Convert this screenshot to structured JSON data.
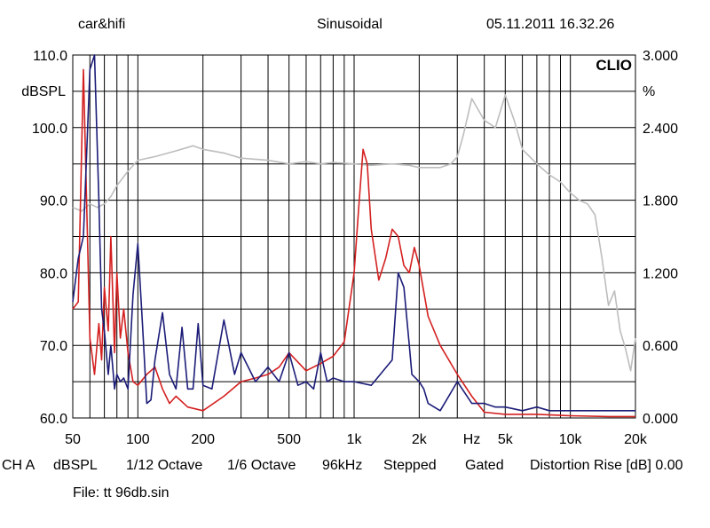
{
  "header": {
    "left": "car&hifi",
    "center": "Sinusoidal",
    "right": "05.11.2011 16.32.26"
  },
  "logo": "CLIO",
  "footer": {
    "channel": "CH A",
    "unit": "dBSPL",
    "smoothing": "1/12 Octave",
    "resolution": "1/6 Octave",
    "rate": "96kHz",
    "mode": "Stepped",
    "gating": "Gated",
    "distortion": "Distortion Rise [dB] 0.00",
    "file": "File: tt 96db.sin"
  },
  "colors": {
    "background": "#ffffff",
    "grid": "#000000",
    "series_red": "#d42020",
    "series_blue": "#1c1c78",
    "series_grey": "#bdbdbd"
  },
  "chart_data": {
    "type": "line",
    "xscale": "log",
    "xlim": [
      50,
      20000
    ],
    "x_ticks": [
      {
        "value": 50,
        "label": "50"
      },
      {
        "value": 100,
        "label": "100"
      },
      {
        "value": 200,
        "label": "200"
      },
      {
        "value": 500,
        "label": "500"
      },
      {
        "value": 1000,
        "label": "1k"
      },
      {
        "value": 2000,
        "label": "2k"
      },
      {
        "value": 3500,
        "label": "Hz"
      },
      {
        "value": 5000,
        "label": "5k"
      },
      {
        "value": 10000,
        "label": "10k"
      },
      {
        "value": 20000,
        "label": "20k"
      }
    ],
    "xlabel": "Hz",
    "ylabel_left": "dBSPL",
    "ylim_left": [
      60,
      110
    ],
    "y_ticks_left": [
      "60.0",
      "70.0",
      "80.0",
      "90.0",
      "100.0",
      "110.0"
    ],
    "ylabel_right": "%",
    "ylim_right": [
      0,
      3
    ],
    "y_ticks_right": [
      "0.000",
      "0.600",
      "1.200",
      "1.800",
      "2.400",
      "3.000"
    ],
    "grid": true,
    "series": [
      {
        "color": "#bdbdbd",
        "axis": "left",
        "x": [
          50,
          55,
          60,
          65,
          70,
          75,
          80,
          90,
          100,
          120,
          150,
          180,
          200,
          250,
          300,
          400,
          500,
          600,
          700,
          800,
          1000,
          1200,
          1500,
          1800,
          2000,
          2500,
          2800,
          3000,
          3200,
          3500,
          4000,
          4500,
          5000,
          5500,
          6000,
          7000,
          8000,
          9000,
          10000,
          11000,
          12000,
          13000,
          14000,
          15000,
          16000,
          17000,
          18000,
          19000,
          20000
        ],
        "y": [
          89,
          88.5,
          89.5,
          89,
          89.5,
          90.5,
          92,
          94,
          95.5,
          96,
          96.8,
          97.5,
          97,
          96.5,
          95.8,
          95.5,
          95,
          95.3,
          95,
          95.2,
          95,
          94.8,
          95,
          94.8,
          94.5,
          94.5,
          95,
          96,
          99,
          104,
          101,
          100,
          104.5,
          101,
          97,
          95,
          93.5,
          92.5,
          91,
          90,
          89.5,
          88,
          82,
          75.5,
          77.5,
          72,
          69.5,
          66.5,
          71
        ]
      },
      {
        "color": "#d42020",
        "axis": "left",
        "x": [
          50,
          53,
          56,
          60,
          63,
          66,
          68,
          70,
          73,
          75,
          78,
          80,
          83,
          86,
          90,
          95,
          100,
          110,
          120,
          130,
          140,
          150,
          170,
          200,
          250,
          300,
          350,
          400,
          450,
          500,
          600,
          700,
          800,
          900,
          1000,
          1050,
          1100,
          1150,
          1200,
          1300,
          1400,
          1500,
          1600,
          1700,
          1800,
          1900,
          2000,
          2200,
          2500,
          3000,
          3500,
          4000,
          5000,
          7000,
          10000,
          15000,
          20000
        ],
        "y": [
          75,
          76,
          108,
          71,
          66,
          73,
          68,
          78,
          72,
          85,
          69,
          80,
          71,
          75,
          69,
          65,
          64.5,
          66,
          67,
          64,
          62,
          63,
          61.5,
          61,
          63,
          65,
          65.5,
          66,
          67,
          69,
          66.5,
          67.5,
          68.5,
          70.5,
          80,
          89,
          97,
          95,
          86,
          79,
          82,
          86,
          85,
          81,
          80,
          83.5,
          81,
          74,
          70,
          66,
          63,
          60.8,
          60.5,
          60.5,
          60.3,
          60.2,
          60.2
        ]
      },
      {
        "color": "#1c1c78",
        "axis": "left",
        "x": [
          50,
          53,
          56,
          60,
          63,
          66,
          68,
          70,
          73,
          75,
          78,
          80,
          83,
          86,
          90,
          95,
          100,
          105,
          110,
          115,
          120,
          130,
          140,
          150,
          160,
          170,
          180,
          190,
          200,
          220,
          250,
          280,
          300,
          350,
          400,
          450,
          500,
          550,
          600,
          650,
          700,
          750,
          800,
          900,
          1000,
          1200,
          1500,
          1600,
          1700,
          1800,
          1850,
          2000,
          2100,
          2200,
          2500,
          3000,
          3500,
          4000,
          4500,
          5000,
          6000,
          7000,
          8000,
          10000,
          15000,
          20000
        ],
        "y": [
          76,
          82,
          85,
          108,
          112,
          90,
          75,
          72,
          66,
          70,
          64,
          66,
          65,
          65.5,
          64,
          77,
          84,
          73,
          62,
          62.5,
          68,
          74.5,
          66,
          64,
          72.5,
          64,
          64,
          73,
          64.5,
          64,
          73.5,
          66,
          69,
          65,
          67,
          65,
          69,
          64.5,
          65,
          64,
          69,
          65,
          65.5,
          65,
          65,
          64.5,
          68,
          80,
          78,
          70,
          66,
          65,
          64,
          62,
          61,
          65,
          62,
          62,
          61.5,
          61.5,
          61,
          61.5,
          61,
          61,
          61,
          61
        ]
      }
    ]
  }
}
